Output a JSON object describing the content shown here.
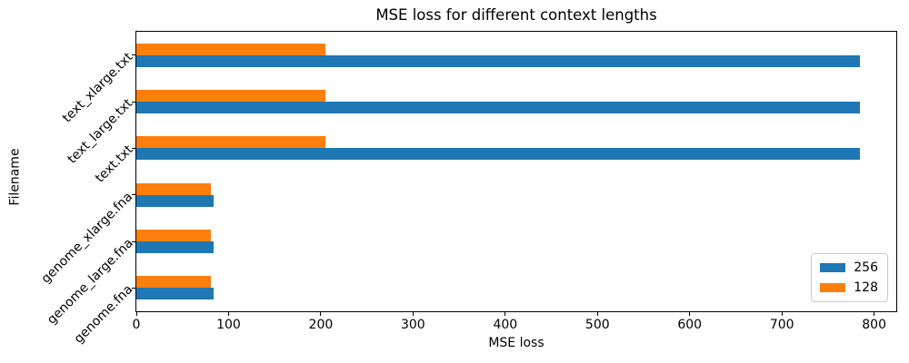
{
  "chart_data": {
    "type": "bar",
    "orientation": "horizontal",
    "title": "MSE loss for different context lengths",
    "xlabel": "MSE loss",
    "ylabel": "Filename",
    "categories_top_to_bottom": [
      "text_xlarge.txt",
      "text_large.txt",
      "text.txt",
      "genome_xlarge.fna",
      "genome_large.fna",
      "genome.fna"
    ],
    "series": [
      {
        "name": "256",
        "color": "#1f77b4",
        "values": [
          785,
          785,
          785,
          84,
          84,
          84
        ]
      },
      {
        "name": "128",
        "color": "#ff7f0e",
        "values": [
          205,
          205,
          205,
          81,
          81,
          81
        ]
      }
    ],
    "xlim": [
      0,
      824
    ],
    "xticks": [
      0,
      100,
      200,
      300,
      400,
      500,
      600,
      700,
      800
    ],
    "legend_position": "lower right",
    "grid": false,
    "spine_color": "#000000",
    "text_color": "#000000"
  }
}
